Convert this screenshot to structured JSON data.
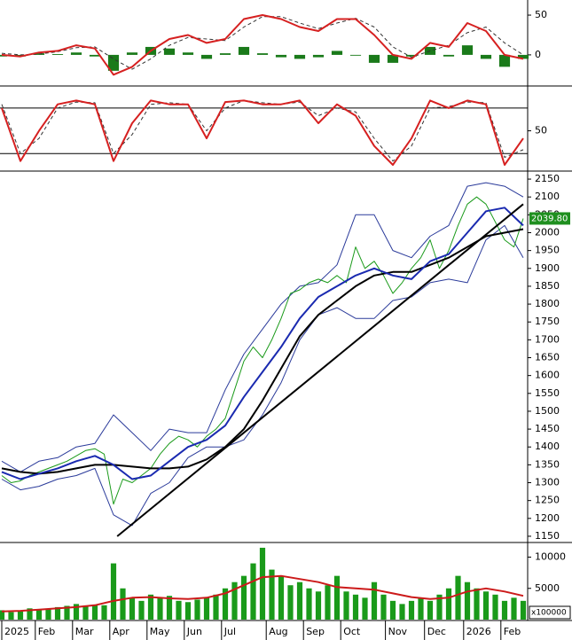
{
  "chart_data": [
    {
      "type": "line",
      "xlim": [
        0,
        280
      ],
      "ylim": [
        -38,
        69
      ],
      "yticks": [
        0,
        50
      ],
      "series": [
        {
          "kind": "bar",
          "color": "#1a7a1a",
          "x": [
            0,
            10,
            20,
            30,
            40,
            50,
            60,
            70,
            80,
            90,
            100,
            110,
            120,
            130,
            140,
            150,
            160,
            170,
            180,
            190,
            200,
            210,
            220,
            230,
            240,
            250,
            260,
            270,
            280
          ],
          "values": [
            -2,
            -2,
            2,
            1,
            3,
            -2,
            -20,
            3,
            10,
            8,
            3,
            -5,
            2,
            10,
            2,
            -3,
            -5,
            -3,
            5,
            -1,
            -10,
            -10,
            -2,
            10,
            -2,
            12,
            -5,
            -15,
            -5
          ]
        },
        {
          "kind": "line",
          "dash": true,
          "color": "#333333",
          "x": [
            0,
            10,
            20,
            30,
            40,
            50,
            60,
            70,
            80,
            90,
            100,
            110,
            120,
            130,
            140,
            150,
            160,
            170,
            180,
            190,
            200,
            210,
            220,
            230,
            240,
            250,
            260,
            270,
            280
          ],
          "values": [
            2,
            0,
            1,
            4,
            9,
            10,
            -5,
            -18,
            -5,
            12,
            22,
            20,
            18,
            35,
            48,
            48,
            40,
            33,
            40,
            46,
            35,
            10,
            -3,
            5,
            12,
            28,
            35,
            15,
            0
          ]
        },
        {
          "kind": "line",
          "color": "#d62020",
          "x": [
            0,
            10,
            20,
            30,
            40,
            50,
            60,
            70,
            80,
            90,
            100,
            110,
            120,
            130,
            140,
            150,
            160,
            170,
            180,
            190,
            200,
            210,
            220,
            230,
            240,
            250,
            260,
            270,
            280
          ],
          "values": [
            0,
            -2,
            3,
            5,
            12,
            8,
            -25,
            -15,
            5,
            20,
            25,
            15,
            20,
            45,
            50,
            45,
            35,
            30,
            45,
            45,
            25,
            0,
            -5,
            15,
            10,
            40,
            30,
            0,
            -5
          ]
        }
      ]
    },
    {
      "type": "line",
      "xlim": [
        0,
        280
      ],
      "ylim": [
        -2,
        108
      ],
      "yticks": [
        50
      ],
      "hlines": [
        20,
        80
      ],
      "series": [
        {
          "kind": "line",
          "dash": true,
          "color": "#333333",
          "x": [
            0,
            10,
            20,
            30,
            40,
            50,
            60,
            70,
            80,
            90,
            100,
            110,
            120,
            130,
            140,
            150,
            160,
            170,
            180,
            190,
            200,
            210,
            220,
            230,
            240,
            250,
            260,
            270,
            280
          ],
          "values": [
            85,
            20,
            40,
            80,
            88,
            87,
            20,
            45,
            85,
            87,
            85,
            50,
            80,
            90,
            87,
            85,
            88,
            70,
            80,
            75,
            40,
            10,
            30,
            80,
            82,
            88,
            87,
            15,
            25
          ]
        },
        {
          "kind": "line",
          "color": "#d62020",
          "x": [
            0,
            10,
            20,
            30,
            40,
            50,
            60,
            70,
            80,
            90,
            100,
            110,
            120,
            130,
            140,
            150,
            160,
            170,
            180,
            190,
            200,
            210,
            220,
            230,
            240,
            250,
            260,
            270,
            280
          ],
          "values": [
            80,
            10,
            50,
            85,
            90,
            85,
            10,
            60,
            90,
            85,
            85,
            40,
            88,
            90,
            85,
            85,
            90,
            60,
            85,
            70,
            30,
            5,
            40,
            90,
            80,
            90,
            85,
            5,
            40
          ]
        }
      ]
    },
    {
      "type": "line",
      "xlim": [
        0,
        280
      ],
      "ylim": [
        1135,
        2170
      ],
      "yticks": [
        1150,
        1200,
        1250,
        1300,
        1350,
        1400,
        1450,
        1500,
        1550,
        1600,
        1650,
        1700,
        1750,
        1800,
        1850,
        1900,
        1950,
        2000,
        2050,
        2100,
        2150
      ],
      "last_price": {
        "value": 2039.8,
        "label": "2039.80"
      },
      "series": [
        {
          "kind": "line",
          "width": 1,
          "color": "#2a3a9a",
          "x": [
            0,
            10,
            20,
            30,
            40,
            50,
            60,
            70,
            80,
            90,
            100,
            110,
            120,
            130,
            140,
            150,
            160,
            170,
            180,
            190,
            200,
            210,
            220,
            230,
            240,
            250,
            260,
            270,
            280
          ],
          "values": [
            1360,
            1330,
            1360,
            1370,
            1400,
            1410,
            1490,
            1440,
            1390,
            1450,
            1440,
            1440,
            1560,
            1660,
            1730,
            1800,
            1850,
            1860,
            1910,
            2050,
            2050,
            1950,
            1930,
            1990,
            2020,
            2130,
            2140,
            2130,
            2100
          ]
        },
        {
          "kind": "line",
          "width": 1,
          "color": "#2a3a9a",
          "x": [
            0,
            10,
            20,
            30,
            40,
            50,
            60,
            70,
            80,
            90,
            100,
            110,
            120,
            130,
            140,
            150,
            160,
            170,
            180,
            190,
            200,
            210,
            220,
            230,
            240,
            250,
            260,
            270,
            280
          ],
          "values": [
            1310,
            1280,
            1290,
            1310,
            1320,
            1340,
            1210,
            1180,
            1270,
            1300,
            1370,
            1400,
            1400,
            1420,
            1490,
            1580,
            1700,
            1770,
            1790,
            1760,
            1760,
            1810,
            1820,
            1860,
            1870,
            1860,
            1980,
            2020,
            1930
          ]
        },
        {
          "kind": "line",
          "width": 1,
          "color": "#1a9a1a",
          "x": [
            0,
            5,
            10,
            15,
            20,
            25,
            30,
            35,
            40,
            45,
            50,
            55,
            60,
            65,
            70,
            75,
            80,
            85,
            90,
            95,
            100,
            105,
            110,
            115,
            120,
            125,
            130,
            135,
            140,
            145,
            150,
            155,
            160,
            165,
            170,
            175,
            180,
            185,
            190,
            195,
            200,
            205,
            210,
            215,
            220,
            225,
            230,
            235,
            240,
            245,
            250,
            255,
            260,
            265,
            270,
            275,
            280
          ],
          "values": [
            1320,
            1300,
            1305,
            1320,
            1330,
            1340,
            1350,
            1360,
            1375,
            1390,
            1395,
            1380,
            1240,
            1310,
            1300,
            1320,
            1340,
            1380,
            1410,
            1430,
            1420,
            1400,
            1430,
            1450,
            1480,
            1560,
            1640,
            1680,
            1650,
            1700,
            1760,
            1830,
            1840,
            1860,
            1870,
            1860,
            1880,
            1860,
            1960,
            1900,
            1920,
            1880,
            1830,
            1860,
            1900,
            1930,
            1980,
            1900,
            1950,
            2020,
            2080,
            2100,
            2080,
            2030,
            1980,
            1960,
            2039.8
          ]
        },
        {
          "kind": "line",
          "width": 2,
          "color": "#000000",
          "x": [
            0,
            10,
            20,
            30,
            40,
            50,
            60,
            70,
            80,
            90,
            100,
            110,
            120,
            130,
            140,
            150,
            160,
            170,
            180,
            190,
            200,
            210,
            220,
            230,
            240,
            250,
            260,
            270,
            280
          ],
          "values": [
            1340,
            1330,
            1325,
            1330,
            1340,
            1350,
            1350,
            1345,
            1340,
            1340,
            1345,
            1365,
            1400,
            1450,
            1530,
            1620,
            1710,
            1770,
            1810,
            1850,
            1880,
            1890,
            1890,
            1910,
            1930,
            1960,
            1990,
            2000,
            2010
          ]
        },
        {
          "kind": "line",
          "width": 2,
          "color": "#1a2ab0",
          "x": [
            0,
            10,
            20,
            30,
            40,
            50,
            60,
            70,
            80,
            90,
            100,
            110,
            120,
            130,
            140,
            150,
            160,
            170,
            180,
            190,
            200,
            210,
            220,
            230,
            240,
            250,
            260,
            270,
            280
          ],
          "values": [
            1330,
            1310,
            1325,
            1340,
            1360,
            1375,
            1350,
            1310,
            1320,
            1360,
            1400,
            1420,
            1460,
            1540,
            1610,
            1680,
            1760,
            1820,
            1850,
            1880,
            1900,
            1880,
            1870,
            1920,
            1940,
            2000,
            2060,
            2070,
            2020
          ]
        },
        {
          "kind": "line",
          "width": 2,
          "color": "#000000",
          "x": [
            62,
            280
          ],
          "values": [
            1150,
            2080
          ]
        }
      ]
    },
    {
      "type": "bar",
      "xlim": [
        0,
        280
      ],
      "ylim": [
        0,
        12200
      ],
      "yticks": [
        5000,
        10000
      ],
      "unit_label": "x100000",
      "xticks": [
        {
          "value": 0,
          "label": "2025"
        },
        {
          "value": 18,
          "label": "Feb"
        },
        {
          "value": 38,
          "label": "Mar"
        },
        {
          "value": 58,
          "label": "Apr"
        },
        {
          "value": 78,
          "label": "May"
        },
        {
          "value": 98,
          "label": "Jun"
        },
        {
          "value": 118,
          "label": "Jul"
        },
        {
          "value": 142,
          "label": "Aug"
        },
        {
          "value": 162,
          "label": "Sep"
        },
        {
          "value": 182,
          "label": "Oct"
        },
        {
          "value": 206,
          "label": "Nov"
        },
        {
          "value": 227,
          "label": "Dec"
        },
        {
          "value": 248,
          "label": "2026"
        },
        {
          "value": 268,
          "label": "Feb"
        }
      ],
      "series": [
        {
          "kind": "bar",
          "color": "#1a9a1a",
          "x": [
            0,
            5,
            10,
            15,
            20,
            25,
            30,
            35,
            40,
            45,
            50,
            55,
            60,
            65,
            70,
            75,
            80,
            85,
            90,
            95,
            100,
            105,
            110,
            115,
            120,
            125,
            130,
            135,
            140,
            145,
            150,
            155,
            160,
            165,
            170,
            175,
            180,
            185,
            190,
            195,
            200,
            205,
            210,
            215,
            220,
            225,
            230,
            235,
            240,
            245,
            250,
            255,
            260,
            265,
            270,
            275,
            280
          ],
          "values": [
            1500,
            1200,
            1300,
            1800,
            1600,
            1700,
            2000,
            2200,
            2500,
            2100,
            2400,
            2300,
            9000,
            5000,
            3500,
            3000,
            4000,
            3500,
            3800,
            3000,
            2800,
            3200,
            3500,
            4000,
            5000,
            6000,
            7000,
            9000,
            11500,
            8000,
            7000,
            5500,
            6000,
            5000,
            4500,
            5500,
            7000,
            4500,
            4000,
            3500,
            6000,
            4000,
            3000,
            2500,
            3000,
            3500,
            3000,
            4000,
            5000,
            7000,
            6000,
            5000,
            4500,
            4000,
            3000,
            3500,
            3000
          ]
        },
        {
          "kind": "line",
          "width": 2,
          "color": "#cc1a1a",
          "x": [
            0,
            10,
            20,
            30,
            40,
            50,
            60,
            70,
            80,
            90,
            100,
            110,
            120,
            130,
            140,
            150,
            160,
            170,
            180,
            190,
            200,
            210,
            220,
            230,
            240,
            250,
            260,
            270,
            280
          ],
          "values": [
            1300,
            1400,
            1600,
            1800,
            2000,
            2300,
            3000,
            3500,
            3600,
            3400,
            3300,
            3500,
            4200,
            5500,
            6800,
            7000,
            6500,
            6000,
            5200,
            5000,
            4800,
            4200,
            3600,
            3300,
            3500,
            4500,
            5000,
            4500,
            3800
          ]
        }
      ]
    }
  ]
}
